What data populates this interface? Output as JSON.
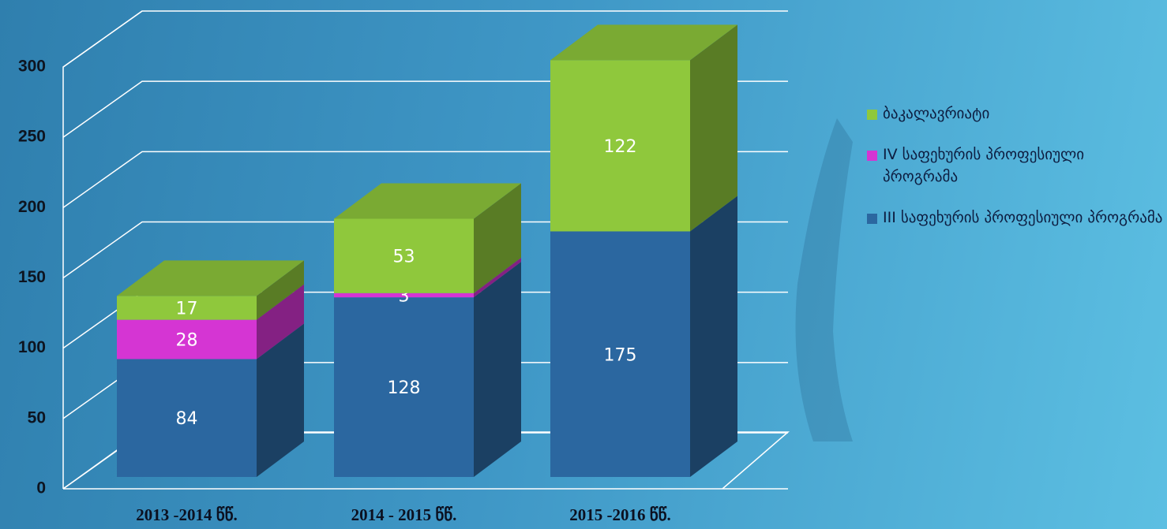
{
  "chart_data": {
    "type": "bar",
    "stacked": true,
    "categories": [
      "2013 -2014 წწ.",
      "2014 - 2015 წწ.",
      "2015 -2016 წწ."
    ],
    "series": [
      {
        "name": "III საფეხურის პროფესიული პროგრამა",
        "color": "#2b67a0",
        "values": [
          84,
          128,
          175
        ]
      },
      {
        "name": "IV საფეხურის პროფესიული პროგრამა",
        "color": "#d535d3",
        "values": [
          28,
          3,
          null
        ]
      },
      {
        "name": "ბაკალავრიატი",
        "color": "#8fc83c",
        "values": [
          17,
          53,
          122
        ]
      }
    ],
    "ylim": [
      0,
      300
    ],
    "yticks": [
      0,
      50,
      100,
      150,
      200,
      250,
      300
    ],
    "grid": true
  }
}
